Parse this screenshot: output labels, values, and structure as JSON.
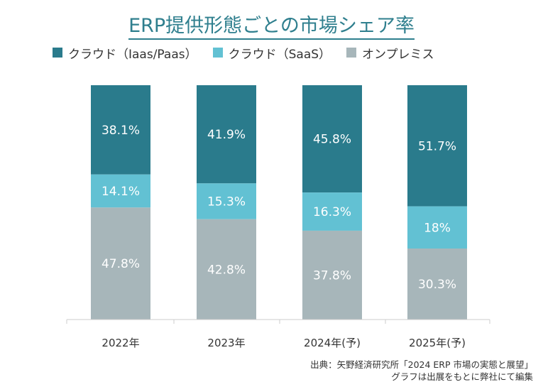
{
  "title": "ERP提供形態ごとの市場シェア率",
  "chart_data": {
    "type": "bar",
    "stacked": true,
    "categories": [
      "2022年",
      "2023年",
      "2024年(予)",
      "2025年(予)"
    ],
    "series": [
      {
        "name": "クラウド（Iaas/Paas）",
        "color": "#2a7b8c",
        "values": [
          38.1,
          41.9,
          45.8,
          51.7
        ],
        "labels": [
          "38.1%",
          "41.9%",
          "45.8%",
          "51.7%"
        ]
      },
      {
        "name": "クラウド（SaaS）",
        "color": "#62c1d3",
        "values": [
          14.1,
          15.3,
          16.3,
          18
        ],
        "labels": [
          "14.1%",
          "15.3%",
          "16.3%",
          "18%"
        ]
      },
      {
        "name": "オンプレミス",
        "color": "#a7b6ba",
        "values": [
          47.8,
          42.8,
          37.8,
          30.3
        ],
        "labels": [
          "47.8%",
          "42.8%",
          "37.8%",
          "30.3%"
        ]
      }
    ],
    "ylim": [
      0,
      100
    ],
    "legend_position": "top-left",
    "grid": false
  },
  "source": {
    "line1": "出典：矢野経済研究所「2024 ERP 市場の実態と展望」",
    "line2": "グラフは出展をもとに弊社にて編集"
  }
}
